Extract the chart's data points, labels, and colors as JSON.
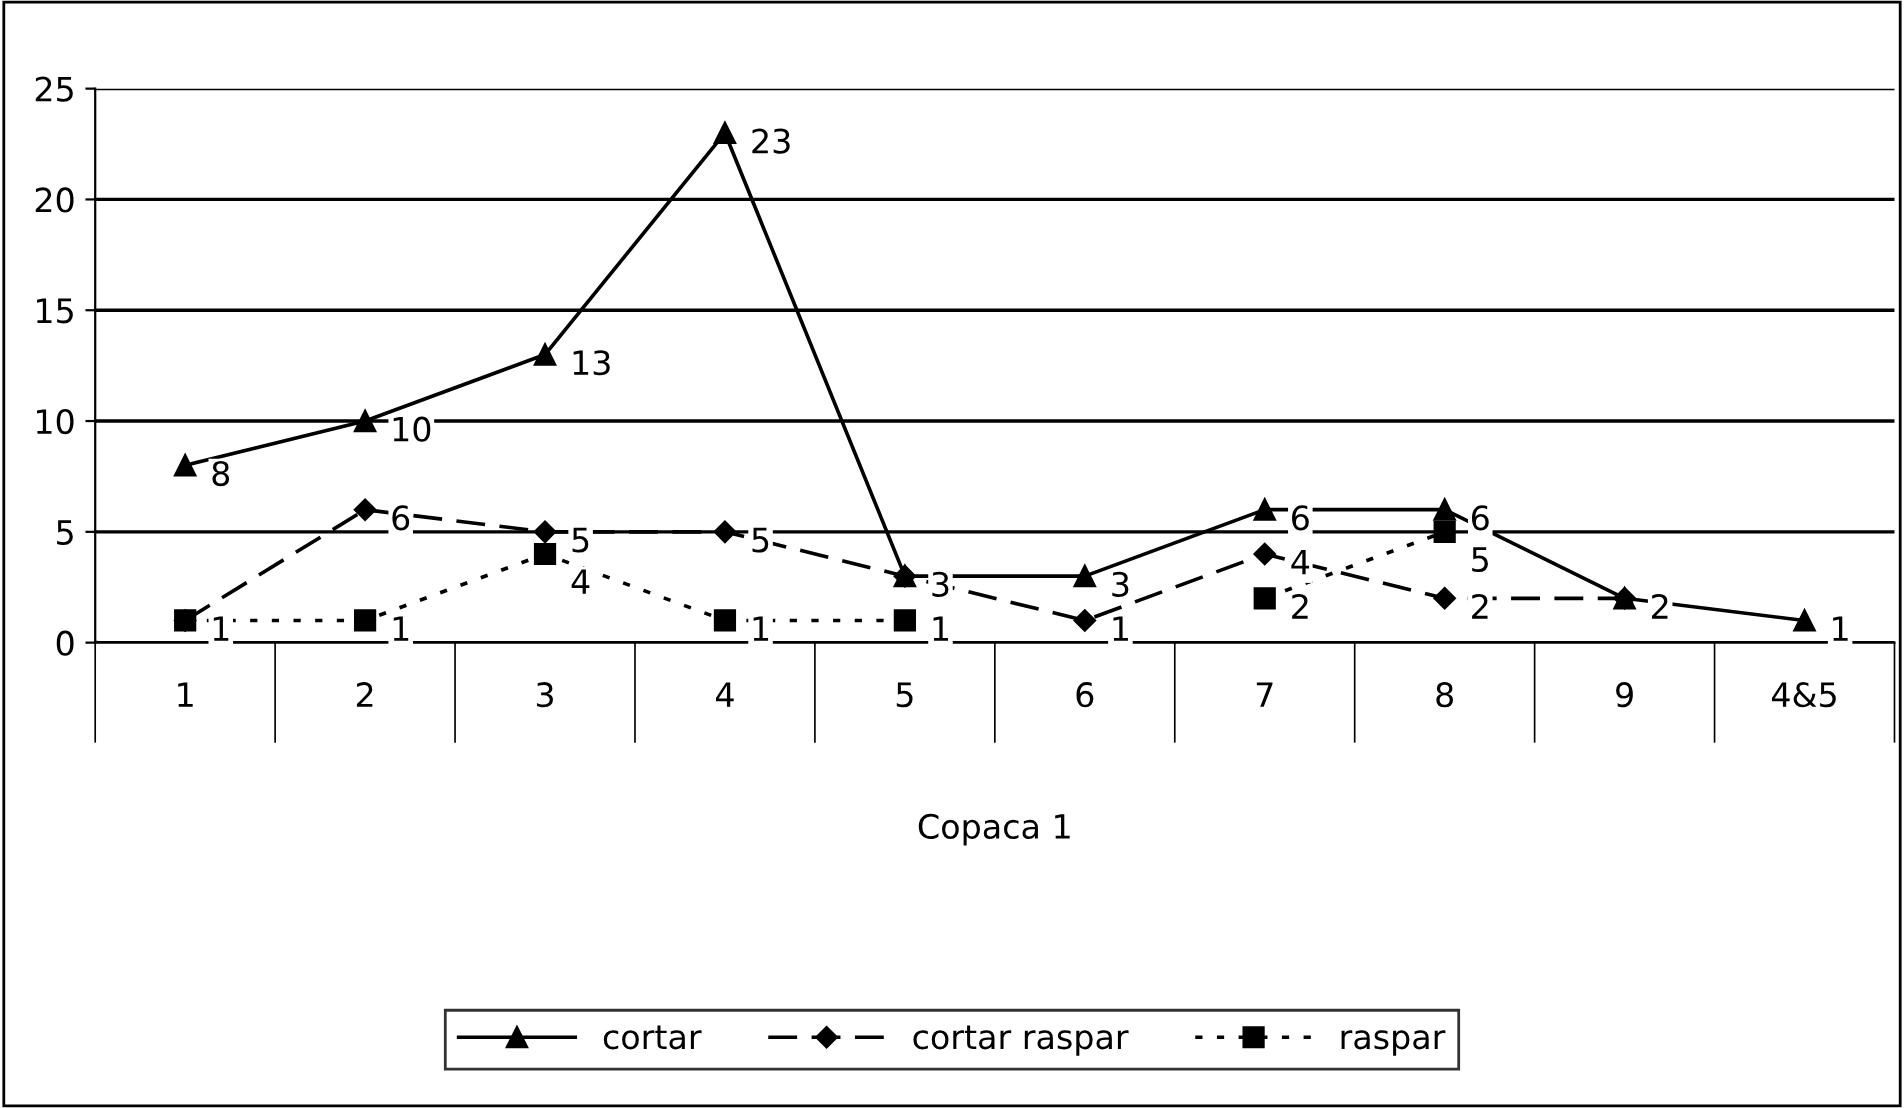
{
  "chart_data": {
    "type": "line",
    "xlabel": "Copaca 1",
    "categories": [
      "1",
      "2",
      "3",
      "4",
      "5",
      "6",
      "7",
      "8",
      "9",
      "4&5"
    ],
    "series": [
      {
        "name": "cortar",
        "color": "#000000",
        "marker": "triangle",
        "line_style": "solid",
        "values": [
          8,
          10,
          13,
          23,
          3,
          3,
          6,
          6,
          2,
          1
        ],
        "value_labels": [
          "8",
          "10",
          "13",
          "23",
          "3",
          "3",
          "6",
          "6",
          "2",
          "1"
        ]
      },
      {
        "name": "cortar raspar",
        "color": "#000000",
        "marker": "diamond",
        "line_style": "dashed",
        "values": [
          1,
          6,
          5,
          5,
          3,
          1,
          4,
          2,
          2,
          null
        ],
        "value_labels": [
          null,
          "6",
          "5",
          "5",
          null,
          "1",
          "4",
          "2",
          null,
          null
        ]
      },
      {
        "name": "raspar",
        "color": "#000000",
        "marker": "square",
        "line_style": "dotted",
        "values": [
          1,
          1,
          4,
          1,
          1,
          null,
          2,
          5,
          null,
          null
        ],
        "value_labels": [
          "1",
          "1",
          "4",
          "1",
          "1",
          null,
          "2",
          "5",
          null,
          null
        ]
      }
    ],
    "ylim": [
      0,
      25
    ],
    "yticks": [
      0,
      5,
      10,
      15,
      20,
      25
    ],
    "grid": "y",
    "legend": "bottom"
  }
}
